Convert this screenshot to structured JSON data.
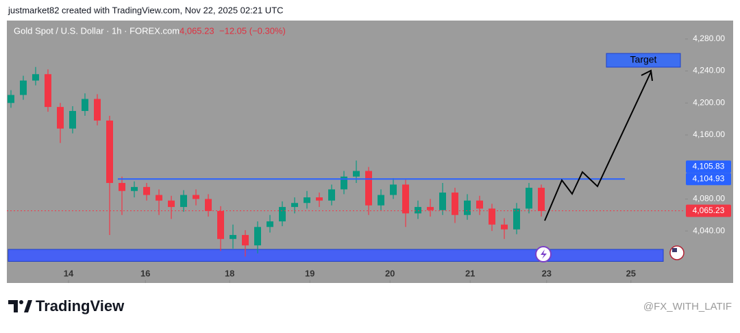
{
  "chart_data": {
    "type": "candlestick",
    "created_by": "justmarket82 created with TradingView.com, Nov 22, 2025 02:21 UTC",
    "title": "Gold Spot / U.S. Dollar · 1h · FOREX.com",
    "last_price": "4,065.23",
    "change": "−12.05 (−0.30%)",
    "brand": "TradingView",
    "watermark": "@FX_WITH_LATIF",
    "up_color": "#089981",
    "down_color": "#f23645",
    "x": [
      1,
      4,
      7,
      10,
      13,
      16,
      19,
      22,
      25,
      28,
      31,
      34,
      37,
      40,
      43,
      46,
      49,
      52,
      55,
      58,
      61,
      64,
      67,
      70,
      73,
      76,
      79,
      82,
      85,
      88,
      91,
      94,
      97,
      100,
      103,
      106,
      109,
      112,
      115,
      118,
      121,
      124,
      127,
      130
    ],
    "open": [
      4200,
      4210,
      4228,
      4236,
      4195,
      4168,
      4190,
      4205,
      4178,
      4100,
      4090,
      4095,
      4085,
      4078,
      4070,
      4085,
      4080,
      4065,
      4030,
      4035,
      4022,
      4045,
      4052,
      4070,
      4075,
      4082,
      4078,
      4092,
      4108,
      4115,
      4072,
      4085,
      4098,
      4062,
      4070,
      4066,
      4088,
      4060,
      4078,
      4068,
      4048,
      4042,
      4068,
      4094
    ],
    "high": [
      4216,
      4234,
      4245,
      4242,
      4200,
      4196,
      4212,
      4211,
      4184,
      4108,
      4102,
      4100,
      4092,
      4084,
      4091,
      4092,
      4086,
      4071,
      4048,
      4041,
      4052,
      4060,
      4077,
      4082,
      4090,
      4088,
      4098,
      4115,
      4128,
      4120,
      4092,
      4106,
      4104,
      4078,
      4080,
      4100,
      4094,
      4086,
      4084,
      4074,
      4056,
      4075,
      4100,
      4098
    ],
    "low": [
      4194,
      4204,
      4222,
      4189,
      4150,
      4162,
      4184,
      4172,
      4035,
      4060,
      4082,
      4078,
      4060,
      4055,
      4064,
      4072,
      4058,
      4015,
      4018,
      4008,
      4012,
      4038,
      4046,
      4062,
      4068,
      4070,
      4072,
      4086,
      4100,
      4060,
      4066,
      4080,
      4045,
      4055,
      4058,
      4060,
      4050,
      4054,
      4060,
      4040,
      4030,
      4036,
      4062,
      4058
    ],
    "close": [
      4210,
      4228,
      4236,
      4195,
      4168,
      4190,
      4205,
      4178,
      4100,
      4090,
      4095,
      4085,
      4078,
      4070,
      4085,
      4080,
      4065,
      4030,
      4035,
      4022,
      4045,
      4052,
      4070,
      4075,
      4082,
      4078,
      4092,
      4108,
      4115,
      4072,
      4085,
      4098,
      4062,
      4070,
      4066,
      4088,
      4060,
      4078,
      4068,
      4048,
      4042,
      4068,
      4094,
      4065
    ],
    "xlim": [
      0,
      165
    ],
    "xticks": [
      {
        "value": 15,
        "label": "14"
      },
      {
        "value": 33.7,
        "label": "16"
      },
      {
        "value": 54.2,
        "label": "18"
      },
      {
        "value": 73.7,
        "label": "19"
      },
      {
        "value": 93.2,
        "label": "20"
      },
      {
        "value": 112.7,
        "label": "21"
      },
      {
        "value": 131.3,
        "label": "23"
      },
      {
        "value": 151.8,
        "label": "25"
      }
    ],
    "ylim": [
      3975,
      4303
    ],
    "yticks": [
      {
        "value": 4040,
        "label": "4,040.00"
      },
      {
        "value": 4080,
        "label": "4,080.00"
      },
      {
        "value": 4160,
        "label": "4,160.00"
      },
      {
        "value": 4200,
        "label": "4,200.00"
      },
      {
        "value": 4240,
        "label": "4,240.00"
      },
      {
        "value": 4280,
        "label": "4,280.00"
      }
    ],
    "markers": [
      {
        "value": 4105.83,
        "label": "4,105.83",
        "color": "#2962ff"
      },
      {
        "value": 4104.93,
        "label": "4,104.93",
        "color": "#2962ff",
        "line": "solid"
      },
      {
        "value": 4065.23,
        "label": "4,065.23",
        "color": "#f23645",
        "line": "dotted"
      }
    ],
    "support_zone": {
      "low": 4002,
      "high": 4017,
      "color": "#3d5afe"
    },
    "annotation": "Target"
  }
}
